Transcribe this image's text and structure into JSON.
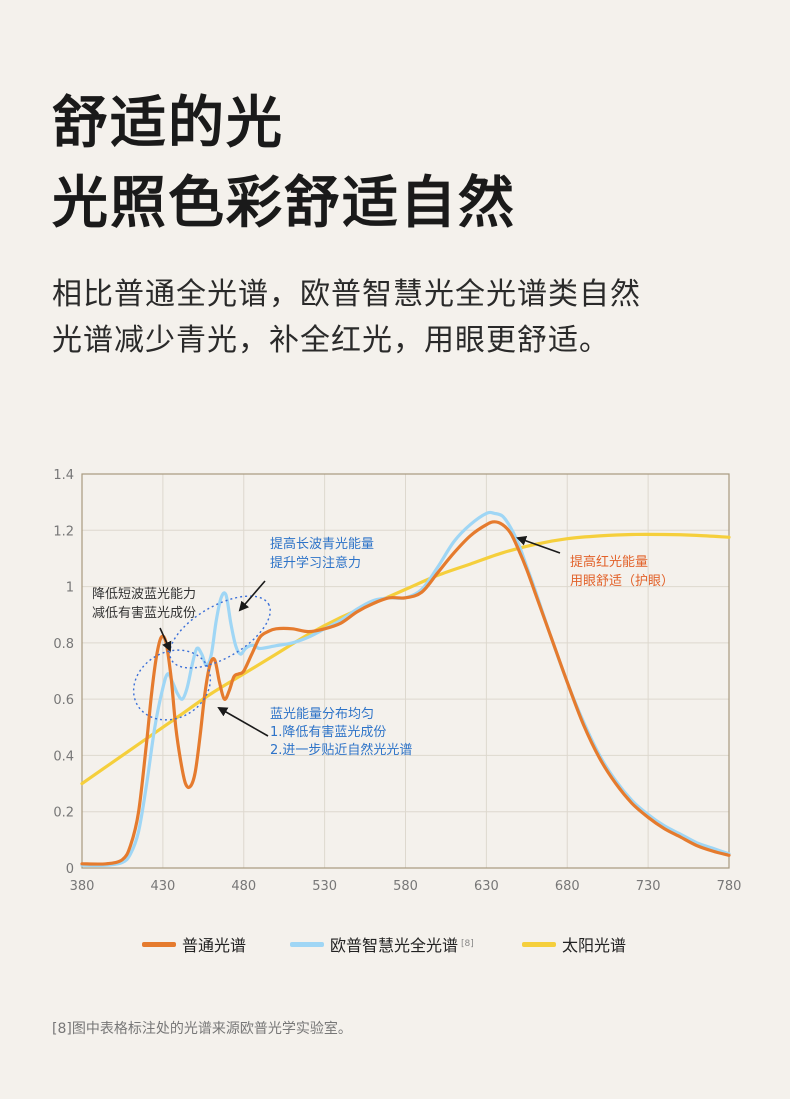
{
  "headline": {
    "line1": "舒适的光",
    "line2": "光照色彩舒适自然"
  },
  "subtitle": {
    "line1": "相比普通全光谱，欧普智慧光全光谱类自然",
    "line2": "光谱减少青光，补全红光，用眼更舒适。"
  },
  "chart_data": {
    "type": "line",
    "x_ticks": [
      380,
      430,
      480,
      530,
      580,
      630,
      680,
      730,
      780
    ],
    "y_ticks": [
      0,
      0.2,
      0.4,
      0.6,
      0.8,
      1,
      1.2,
      1.4
    ],
    "y_tick_labels": [
      "0",
      "0.2",
      "0.4",
      "0.6",
      "0.8",
      "1",
      "1.2",
      "1.4"
    ],
    "xlim": [
      380,
      780
    ],
    "ylim": [
      0,
      1.4
    ],
    "grid": true,
    "legend_position": "bottom",
    "series": [
      {
        "name": "普通光谱",
        "color": "#e57b2e",
        "x": [
          380,
          395,
          405,
          410,
          415,
          420,
          423,
          426,
          429,
          432,
          435,
          438,
          441,
          444,
          447,
          450,
          453,
          456,
          459,
          462,
          465,
          468,
          471,
          474,
          477,
          480,
          485,
          490,
          495,
          500,
          510,
          520,
          530,
          540,
          550,
          560,
          570,
          580,
          590,
          600,
          610,
          620,
          630,
          635,
          640,
          645,
          650,
          655,
          660,
          670,
          680,
          690,
          700,
          710,
          720,
          730,
          740,
          750,
          760,
          770,
          780
        ],
        "values": [
          0.015,
          0.015,
          0.03,
          0.08,
          0.2,
          0.45,
          0.62,
          0.75,
          0.82,
          0.8,
          0.68,
          0.5,
          0.38,
          0.3,
          0.29,
          0.34,
          0.47,
          0.62,
          0.72,
          0.74,
          0.66,
          0.6,
          0.63,
          0.68,
          0.69,
          0.7,
          0.76,
          0.82,
          0.84,
          0.85,
          0.85,
          0.84,
          0.85,
          0.87,
          0.91,
          0.94,
          0.96,
          0.96,
          0.98,
          1.05,
          1.12,
          1.18,
          1.22,
          1.23,
          1.22,
          1.19,
          1.13,
          1.06,
          0.98,
          0.82,
          0.66,
          0.51,
          0.39,
          0.3,
          0.23,
          0.18,
          0.14,
          0.11,
          0.08,
          0.06,
          0.045
        ]
      },
      {
        "name": "欧普智慧光全光谱",
        "color": "#9fd6f5",
        "x": [
          380,
          395,
          405,
          410,
          415,
          420,
          425,
          430,
          433,
          436,
          439,
          442,
          445,
          448,
          451,
          454,
          457,
          460,
          463,
          466,
          469,
          472,
          475,
          478,
          481,
          484,
          487,
          490,
          500,
          510,
          520,
          530,
          540,
          550,
          560,
          570,
          580,
          590,
          600,
          610,
          620,
          630,
          635,
          640,
          645,
          650,
          655,
          660,
          670,
          680,
          690,
          700,
          710,
          720,
          730,
          740,
          750,
          760,
          770,
          780
        ],
        "values": [
          0.01,
          0.01,
          0.02,
          0.05,
          0.13,
          0.3,
          0.5,
          0.64,
          0.69,
          0.66,
          0.62,
          0.6,
          0.64,
          0.72,
          0.78,
          0.76,
          0.72,
          0.76,
          0.88,
          0.96,
          0.97,
          0.87,
          0.79,
          0.76,
          0.78,
          0.79,
          0.79,
          0.78,
          0.79,
          0.8,
          0.82,
          0.85,
          0.88,
          0.92,
          0.95,
          0.96,
          0.96,
          0.99,
          1.07,
          1.16,
          1.22,
          1.26,
          1.26,
          1.25,
          1.21,
          1.15,
          1.07,
          0.99,
          0.82,
          0.66,
          0.52,
          0.4,
          0.31,
          0.24,
          0.19,
          0.15,
          0.12,
          0.09,
          0.07,
          0.05
        ]
      },
      {
        "name": "太阳光谱",
        "color": "#f5cf3c",
        "x": [
          380,
          400,
          420,
          440,
          460,
          480,
          500,
          520,
          540,
          560,
          580,
          600,
          620,
          640,
          660,
          680,
          700,
          720,
          740,
          760,
          780
        ],
        "values": [
          0.3,
          0.38,
          0.46,
          0.54,
          0.62,
          0.69,
          0.76,
          0.83,
          0.89,
          0.94,
          0.99,
          1.04,
          1.08,
          1.12,
          1.15,
          1.17,
          1.18,
          1.185,
          1.185,
          1.182,
          1.175
        ]
      }
    ],
    "annotations": {
      "blue_reduce": {
        "line1": "降低短波蓝光能力",
        "line2": "减低有害蓝光成份"
      },
      "long_blue": {
        "line1": "提高长波青光能量",
        "line2": "提升学习注意力"
      },
      "uniform": {
        "line1": "蓝光能量分布均匀",
        "line2": "1.降低有害蓝光成份",
        "line3": "2.进一步贴近自然光光谱"
      },
      "red": {
        "line1": "提高红光能量",
        "line2": "用眼舒适（护眼）"
      }
    }
  },
  "legend": {
    "items": [
      {
        "label": "普通光谱",
        "color": "#e57b2e",
        "sup": ""
      },
      {
        "label": "欧普智慧光全光谱",
        "color": "#9fd6f5",
        "sup": "[8]"
      },
      {
        "label": "太阳光谱",
        "color": "#f5cf3c",
        "sup": ""
      }
    ]
  },
  "footnote": "[8]图中表格标注处的光谱来源欧普光学实验室。",
  "colors": {
    "background": "#f4f1ec",
    "axis": "#a89a7e",
    "grid": "#ddd8ce",
    "annotation_blue": "#2d73c8",
    "annotation_orange": "#e2622a",
    "annotation_dark": "#333333"
  }
}
